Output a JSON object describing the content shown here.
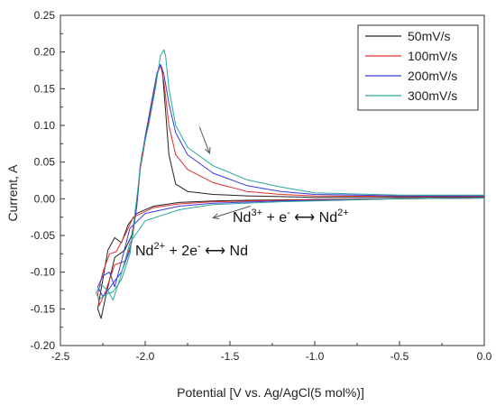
{
  "chart_data": {
    "type": "line",
    "xlabel": "Potential [V vs. Ag/AgCl(5 mol%)]",
    "ylabel": "Current, A",
    "xlim": [
      -2.5,
      0.0
    ],
    "ylim": [
      -0.2,
      0.25
    ],
    "x_ticks": [
      "-2.5",
      "-2.0",
      "-1.5",
      "-1.0",
      "-0.5",
      "0.0"
    ],
    "y_ticks": [
      "-0.20",
      "-0.15",
      "-0.10",
      "-0.05",
      "0.00",
      "0.05",
      "0.10",
      "0.15",
      "0.20",
      "0.25"
    ],
    "grid": false,
    "legend_position": "top-right",
    "series": [
      {
        "name": "50mV/s",
        "color": "#222222",
        "points": [
          [
            0.0,
            0.002
          ],
          [
            -0.2,
            0.002
          ],
          [
            -0.5,
            0.002
          ],
          [
            -0.8,
            0.002
          ],
          [
            -1.0,
            0.002
          ],
          [
            -1.2,
            0.003
          ],
          [
            -1.4,
            0.004
          ],
          [
            -1.6,
            0.006
          ],
          [
            -1.75,
            0.01
          ],
          [
            -1.82,
            0.02
          ],
          [
            -1.86,
            0.06
          ],
          [
            -1.88,
            0.12
          ],
          [
            -1.9,
            0.178
          ],
          [
            -1.91,
            0.182
          ],
          [
            -1.93,
            0.17
          ],
          [
            -1.96,
            0.13
          ],
          [
            -2.0,
            0.08
          ],
          [
            -2.03,
            0.04
          ],
          [
            -2.05,
            -0.01
          ],
          [
            -2.08,
            -0.05
          ],
          [
            -2.12,
            -0.07
          ],
          [
            -2.18,
            -0.08
          ],
          [
            -2.2,
            -0.1
          ],
          [
            -2.23,
            -0.13
          ],
          [
            -2.26,
            -0.163
          ],
          [
            -2.28,
            -0.15
          ],
          [
            -2.25,
            -0.11
          ],
          [
            -2.22,
            -0.07
          ],
          [
            -2.18,
            -0.053
          ],
          [
            -2.14,
            -0.06
          ],
          [
            -2.1,
            -0.035
          ],
          [
            -2.05,
            -0.02
          ],
          [
            -1.95,
            -0.01
          ],
          [
            -1.8,
            -0.005
          ],
          [
            -1.6,
            -0.003
          ],
          [
            -1.4,
            -0.002
          ],
          [
            -1.0,
            -0.001
          ],
          [
            -0.5,
            0.0
          ],
          [
            0.0,
            0.001
          ]
        ]
      },
      {
        "name": "100mV/s",
        "color": "#e03030",
        "points": [
          [
            0.0,
            0.003
          ],
          [
            -0.5,
            0.003
          ],
          [
            -1.0,
            0.004
          ],
          [
            -1.2,
            0.006
          ],
          [
            -1.4,
            0.01
          ],
          [
            -1.6,
            0.022
          ],
          [
            -1.75,
            0.04
          ],
          [
            -1.82,
            0.06
          ],
          [
            -1.86,
            0.1
          ],
          [
            -1.89,
            0.16
          ],
          [
            -1.91,
            0.183
          ],
          [
            -1.93,
            0.17
          ],
          [
            -1.96,
            0.13
          ],
          [
            -2.0,
            0.08
          ],
          [
            -2.03,
            0.04
          ],
          [
            -2.05,
            -0.01
          ],
          [
            -2.08,
            -0.06
          ],
          [
            -2.12,
            -0.085
          ],
          [
            -2.18,
            -0.09
          ],
          [
            -2.21,
            -0.11
          ],
          [
            -2.24,
            -0.13
          ],
          [
            -2.27,
            -0.145
          ],
          [
            -2.28,
            -0.13
          ],
          [
            -2.25,
            -0.1
          ],
          [
            -2.21,
            -0.075
          ],
          [
            -2.17,
            -0.072
          ],
          [
            -2.12,
            -0.05
          ],
          [
            -2.07,
            -0.025
          ],
          [
            -1.95,
            -0.012
          ],
          [
            -1.8,
            -0.007
          ],
          [
            -1.6,
            -0.004
          ],
          [
            -1.2,
            -0.002
          ],
          [
            -0.5,
            0.0
          ],
          [
            0.0,
            0.001
          ]
        ]
      },
      {
        "name": "200mV/s",
        "color": "#3a3adf",
        "points": [
          [
            0.0,
            0.004
          ],
          [
            -0.5,
            0.004
          ],
          [
            -1.0,
            0.006
          ],
          [
            -1.2,
            0.01
          ],
          [
            -1.4,
            0.018
          ],
          [
            -1.6,
            0.035
          ],
          [
            -1.75,
            0.06
          ],
          [
            -1.82,
            0.09
          ],
          [
            -1.86,
            0.13
          ],
          [
            -1.89,
            0.17
          ],
          [
            -1.91,
            0.183
          ],
          [
            -1.93,
            0.172
          ],
          [
            -1.96,
            0.135
          ],
          [
            -2.0,
            0.085
          ],
          [
            -2.03,
            0.045
          ],
          [
            -2.05,
            -0.01
          ],
          [
            -2.09,
            -0.07
          ],
          [
            -2.14,
            -0.1
          ],
          [
            -2.18,
            -0.112
          ],
          [
            -2.22,
            -0.125
          ],
          [
            -2.25,
            -0.133
          ],
          [
            -2.28,
            -0.12
          ],
          [
            -2.25,
            -0.105
          ],
          [
            -2.21,
            -0.1
          ],
          [
            -2.18,
            -0.12
          ],
          [
            -2.14,
            -0.085
          ],
          [
            -2.09,
            -0.04
          ],
          [
            -2.0,
            -0.02
          ],
          [
            -1.8,
            -0.01
          ],
          [
            -1.6,
            -0.006
          ],
          [
            -1.2,
            -0.003
          ],
          [
            -0.5,
            0.0
          ],
          [
            0.0,
            0.001
          ]
        ]
      },
      {
        "name": "300mV/s",
        "color": "#2aa89a",
        "points": [
          [
            0.0,
            0.005
          ],
          [
            -0.5,
            0.005
          ],
          [
            -1.0,
            0.008
          ],
          [
            -1.2,
            0.016
          ],
          [
            -1.4,
            0.026
          ],
          [
            -1.6,
            0.045
          ],
          [
            -1.75,
            0.07
          ],
          [
            -1.82,
            0.1
          ],
          [
            -1.86,
            0.15
          ],
          [
            -1.88,
            0.195
          ],
          [
            -1.89,
            0.203
          ],
          [
            -1.91,
            0.195
          ],
          [
            -1.94,
            0.15
          ],
          [
            -1.98,
            0.1
          ],
          [
            -2.02,
            0.06
          ],
          [
            -2.05,
            0.0
          ],
          [
            -2.09,
            -0.075
          ],
          [
            -2.14,
            -0.11
          ],
          [
            -2.19,
            -0.127
          ],
          [
            -2.23,
            -0.13
          ],
          [
            -2.27,
            -0.137
          ],
          [
            -2.29,
            -0.128
          ],
          [
            -2.26,
            -0.117
          ],
          [
            -2.22,
            -0.125
          ],
          [
            -2.19,
            -0.138
          ],
          [
            -2.15,
            -0.11
          ],
          [
            -2.09,
            -0.06
          ],
          [
            -2.0,
            -0.03
          ],
          [
            -1.8,
            -0.015
          ],
          [
            -1.6,
            -0.008
          ],
          [
            -1.2,
            -0.004
          ],
          [
            -0.5,
            0.0
          ],
          [
            0.0,
            0.001
          ]
        ]
      }
    ],
    "annotations": [
      {
        "base": "Nd",
        "parts": [
          [
            "Nd",
            ""
          ],
          [
            "3+",
            "sup"
          ],
          [
            " + e",
            ""
          ],
          [
            "-",
            "sup"
          ],
          [
            " ⟷ Nd",
            ""
          ],
          [
            "2+",
            "sup"
          ]
        ]
      },
      {
        "base": "Nd",
        "parts": [
          [
            "Nd",
            ""
          ],
          [
            "2+",
            "sup"
          ],
          [
            " + 2e",
            ""
          ],
          [
            "-",
            "sup"
          ],
          [
            " ⟷ Nd",
            ""
          ]
        ]
      }
    ],
    "arrows": [
      {
        "from": [
          -1.68,
          0.098
        ],
        "to": [
          -1.62,
          0.062
        ]
      },
      {
        "from": [
          -1.38,
          -0.01
        ],
        "to": [
          -1.6,
          -0.026
        ]
      }
    ]
  }
}
